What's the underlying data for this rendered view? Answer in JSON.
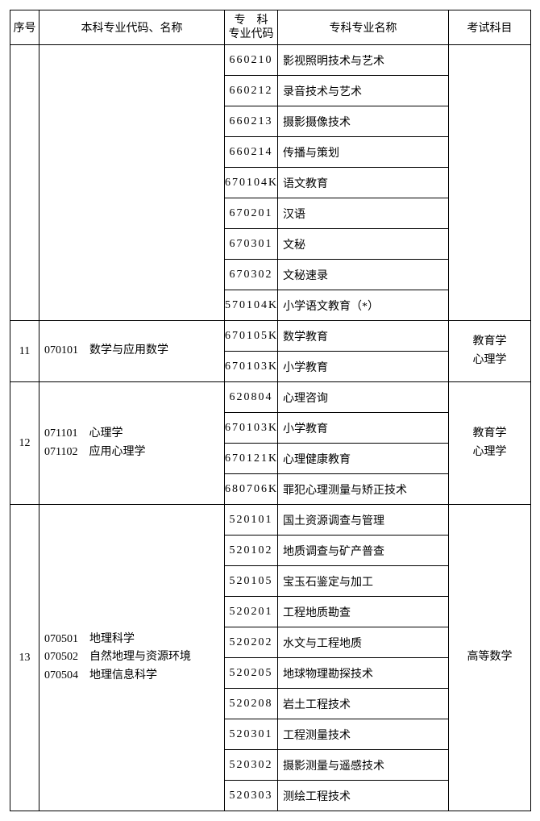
{
  "headers": {
    "seq": "序号",
    "major": "本科专业代码、名称",
    "zkcode_l1": "专　科",
    "zkcode_l2": "专业代码",
    "zkname": "专科专业名称",
    "exam": "考试科目"
  },
  "groups": [
    {
      "seq": "",
      "major_lines": [],
      "exam_lines": [],
      "rows": [
        {
          "code": "660210",
          "name": "影视照明技术与艺术"
        },
        {
          "code": "660212",
          "name": "录音技术与艺术"
        },
        {
          "code": "660213",
          "name": "摄影摄像技术"
        },
        {
          "code": "660214",
          "name": "传播与策划"
        },
        {
          "code": "670104K",
          "name": "语文教育"
        },
        {
          "code": "670201",
          "name": "汉语"
        },
        {
          "code": "670301",
          "name": "文秘"
        },
        {
          "code": "670302",
          "name": "文秘速录"
        },
        {
          "code": "570104K",
          "name": "小学语文教育（*）"
        }
      ]
    },
    {
      "seq": "11",
      "major_lines": [
        "070101　数学与应用数学"
      ],
      "exam_lines": [
        "教育学",
        "心理学"
      ],
      "rows": [
        {
          "code": "670105K",
          "name": "数学教育"
        },
        {
          "code": "670103K",
          "name": "小学教育"
        }
      ]
    },
    {
      "seq": "12",
      "major_lines": [
        "071101　心理学",
        "071102　应用心理学"
      ],
      "exam_lines": [
        "教育学",
        "心理学"
      ],
      "rows": [
        {
          "code": "620804",
          "name": "心理咨询"
        },
        {
          "code": "670103K",
          "name": "小学教育"
        },
        {
          "code": "670121K",
          "name": "心理健康教育"
        },
        {
          "code": "680706K",
          "name": "罪犯心理测量与矫正技术"
        }
      ]
    },
    {
      "seq": "13",
      "major_lines": [
        "070501　地理科学",
        "070502　自然地理与资源环境",
        "070504　地理信息科学"
      ],
      "exam_lines": [
        "高等数学"
      ],
      "rows": [
        {
          "code": "520101",
          "name": "国土资源调查与管理"
        },
        {
          "code": "520102",
          "name": "地质调查与矿产普查"
        },
        {
          "code": "520105",
          "name": "宝玉石鉴定与加工"
        },
        {
          "code": "520201",
          "name": "工程地质勘查"
        },
        {
          "code": "520202",
          "name": "水文与工程地质"
        },
        {
          "code": "520205",
          "name": "地球物理勘探技术"
        },
        {
          "code": "520208",
          "name": "岩土工程技术"
        },
        {
          "code": "520301",
          "name": "工程测量技术"
        },
        {
          "code": "520302",
          "name": "摄影测量与遥感技术"
        },
        {
          "code": "520303",
          "name": "测绘工程技术"
        }
      ]
    }
  ]
}
